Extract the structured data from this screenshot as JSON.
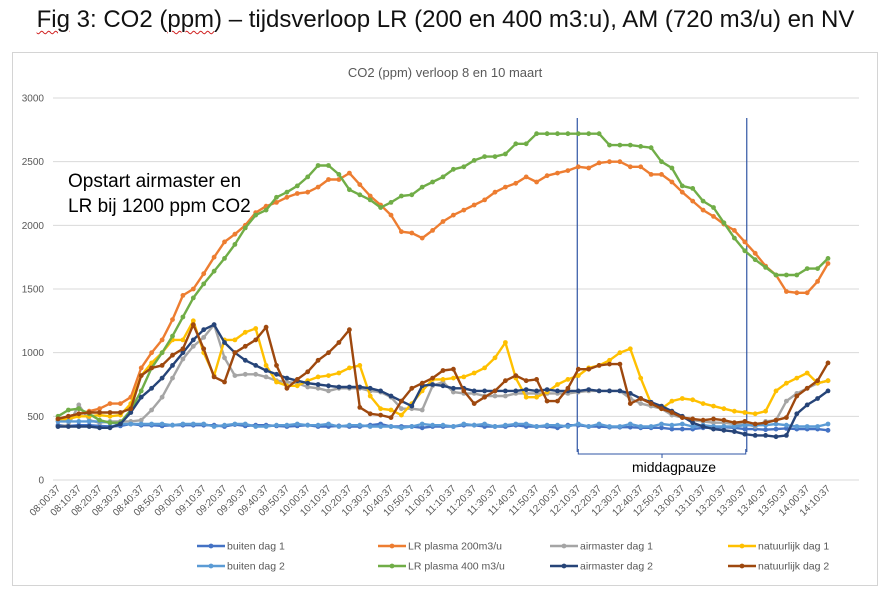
{
  "figure_title": {
    "prefix": "Fig",
    "text_1": " 3: CO2 (",
    "ppm": "ppm",
    "text_2": ") – tijdsverloop LR (200 en 400 m3:u), AM (720 m3/u) en NV"
  },
  "annotation": {
    "line1": "Opstart airmaster en",
    "line2": "LR bij 1200 ppm CO2"
  },
  "pause_label": "middagpauze",
  "chart_data": {
    "type": "line",
    "title": "CO2 (ppm) verloop 8 en 10 maart",
    "xlabel": "",
    "ylabel": "",
    "ylim": [
      0,
      3000
    ],
    "yticks": [
      0,
      500,
      1000,
      1500,
      2000,
      2500,
      3000
    ],
    "grid": true,
    "legend_position": "bottom",
    "x_tick_labels": [
      "08:00:37",
      "08:10:37",
      "08:20:37",
      "08:30:37",
      "08:40:37",
      "08:50:37",
      "09:00:37",
      "09:10:37",
      "09:20:37",
      "09:30:37",
      "09:40:37",
      "09:50:37",
      "10:00:37",
      "10:10:37",
      "10:20:37",
      "10:30:37",
      "10:40:37",
      "10:50:37",
      "11:00:37",
      "11:10:37",
      "11:20:37",
      "11:30:37",
      "11:40:37",
      "11:50:37",
      "12:00:37",
      "12:10:37",
      "12:20:37",
      "12:30:37",
      "12:40:37",
      "12:50:37",
      "13:00:37",
      "13:10:37",
      "13:20:37",
      "13:30:37",
      "13:40:37",
      "13:50:37",
      "14:00:37",
      "14:10:37"
    ],
    "points_per_tick": 2,
    "pause_range": [
      "12:10:37",
      "13:30:37"
    ],
    "series": [
      {
        "name": "buiten dag 1",
        "color": "#4472c4",
        "legend_row": 0,
        "legend_col": 0,
        "values": [
          430,
          425,
          430,
          430,
          425,
          420,
          425,
          440,
          430,
          430,
          425,
          430,
          430,
          430,
          430,
          430,
          420,
          435,
          425,
          430,
          430,
          425,
          420,
          425,
          430,
          420,
          420,
          425,
          420,
          420,
          430,
          440,
          420,
          420,
          420,
          410,
          420,
          420,
          420,
          430,
          430,
          420,
          420,
          420,
          430,
          420,
          420,
          420,
          410,
          430,
          430,
          420,
          420,
          415,
          415,
          415,
          410,
          410,
          410,
          400,
          400,
          400,
          410,
          410,
          415,
          410,
          400,
          400,
          395,
          400,
          405,
          400,
          400,
          400,
          390
        ]
      },
      {
        "name": "LR plasma 200m3/u",
        "color": "#ed7d31",
        "legend_row": 0,
        "legend_col": 1,
        "values": [
          480,
          500,
          520,
          540,
          560,
          600,
          600,
          650,
          880,
          1000,
          1100,
          1260,
          1450,
          1500,
          1620,
          1750,
          1870,
          1930,
          2000,
          2100,
          2150,
          2180,
          2220,
          2250,
          2260,
          2300,
          2360,
          2360,
          2410,
          2320,
          2230,
          2160,
          2080,
          1950,
          1940,
          1900,
          1960,
          2030,
          2080,
          2120,
          2160,
          2200,
          2260,
          2300,
          2330,
          2380,
          2340,
          2390,
          2410,
          2430,
          2460,
          2450,
          2490,
          2500,
          2500,
          2460,
          2460,
          2400,
          2400,
          2340,
          2260,
          2190,
          2120,
          2070,
          2010,
          1960,
          1870,
          1780,
          1680,
          1610,
          1480,
          1470,
          1470,
          1560,
          1700
        ]
      },
      {
        "name": "airmaster dag 1",
        "color": "#a5a5a5",
        "legend_row": 0,
        "legend_col": 2,
        "values": [
          420,
          430,
          590,
          470,
          450,
          460,
          460,
          460,
          470,
          550,
          650,
          800,
          950,
          1050,
          1120,
          1220,
          960,
          820,
          830,
          830,
          810,
          780,
          770,
          760,
          730,
          720,
          700,
          720,
          720,
          720,
          700,
          690,
          650,
          560,
          560,
          550,
          740,
          770,
          690,
          680,
          680,
          660,
          660,
          660,
          680,
          680,
          680,
          680,
          680,
          680,
          690,
          700,
          700,
          700,
          700,
          640,
          600,
          580,
          560,
          510,
          490,
          470,
          460,
          450,
          450,
          440,
          440,
          420,
          460,
          470,
          620,
          680,
          720,
          760,
          780
        ]
      },
      {
        "name": "natuurlijk dag 1",
        "color": "#ffc000",
        "legend_row": 0,
        "legend_col": 3,
        "values": [
          470,
          480,
          500,
          500,
          510,
          500,
          510,
          600,
          820,
          920,
          1000,
          1100,
          1100,
          1250,
          1000,
          820,
          1100,
          1100,
          1160,
          1190,
          900,
          770,
          740,
          740,
          780,
          810,
          820,
          840,
          880,
          900,
          660,
          560,
          550,
          510,
          600,
          700,
          790,
          790,
          800,
          810,
          840,
          880,
          960,
          1080,
          800,
          650,
          650,
          690,
          750,
          790,
          820,
          880,
          900,
          940,
          1000,
          1030,
          800,
          600,
          560,
          620,
          640,
          630,
          600,
          580,
          560,
          540,
          530,
          520,
          540,
          700,
          760,
          800,
          840,
          760,
          780
        ]
      },
      {
        "name": "buiten dag 2",
        "color": "#5b9bd5",
        "legend_row": 1,
        "legend_col": 0,
        "values": [
          460,
          460,
          460,
          460,
          460,
          450,
          440,
          440,
          440,
          440,
          440,
          430,
          440,
          440,
          440,
          420,
          430,
          440,
          440,
          420,
          420,
          430,
          430,
          440,
          430,
          430,
          440,
          420,
          430,
          430,
          420,
          420,
          420,
          410,
          420,
          440,
          430,
          430,
          420,
          440,
          430,
          440,
          420,
          430,
          440,
          440,
          420,
          430,
          430,
          420,
          440,
          420,
          440,
          420,
          420,
          440,
          420,
          420,
          440,
          430,
          440,
          420,
          430,
          420,
          420,
          420,
          430,
          430,
          430,
          440,
          430,
          420,
          420,
          420,
          440
        ]
      },
      {
        "name": "LR plasma 400 m3/u",
        "color": "#70ad47",
        "legend_row": 1,
        "legend_col": 1,
        "values": [
          500,
          550,
          560,
          520,
          470,
          450,
          450,
          550,
          700,
          880,
          1000,
          1130,
          1280,
          1430,
          1540,
          1640,
          1740,
          1850,
          1980,
          2080,
          2120,
          2220,
          2260,
          2310,
          2380,
          2470,
          2470,
          2400,
          2280,
          2240,
          2200,
          2140,
          2180,
          2230,
          2240,
          2300,
          2340,
          2380,
          2440,
          2460,
          2510,
          2540,
          2540,
          2560,
          2640,
          2640,
          2720,
          2720,
          2720,
          2720,
          2720,
          2720,
          2720,
          2630,
          2630,
          2630,
          2620,
          2610,
          2500,
          2450,
          2310,
          2290,
          2190,
          2140,
          2020,
          1900,
          1800,
          1730,
          1670,
          1610,
          1610,
          1610,
          1660,
          1660,
          1740
        ]
      },
      {
        "name": "airmaster dag 2",
        "color": "#264478",
        "legend_row": 1,
        "legend_col": 2,
        "values": [
          420,
          420,
          420,
          420,
          410,
          410,
          440,
          530,
          650,
          720,
          800,
          900,
          1000,
          1100,
          1180,
          1220,
          1080,
          1000,
          940,
          900,
          860,
          830,
          800,
          780,
          760,
          750,
          740,
          730,
          730,
          730,
          720,
          700,
          660,
          620,
          580,
          740,
          750,
          740,
          720,
          720,
          700,
          700,
          700,
          700,
          700,
          710,
          700,
          710,
          700,
          700,
          700,
          710,
          700,
          700,
          700,
          680,
          640,
          610,
          580,
          540,
          500,
          450,
          420,
          400,
          390,
          380,
          360,
          350,
          350,
          340,
          350,
          520,
          590,
          640,
          700
        ]
      },
      {
        "name": "natuurlijk dag 2",
        "color": "#9e480e",
        "legend_row": 1,
        "legend_col": 3,
        "values": [
          480,
          500,
          520,
          530,
          530,
          530,
          530,
          560,
          820,
          880,
          900,
          980,
          1030,
          1220,
          1030,
          810,
          770,
          1000,
          1050,
          1100,
          1200,
          900,
          720,
          790,
          850,
          940,
          1000,
          1080,
          1180,
          570,
          520,
          510,
          490,
          620,
          720,
          760,
          800,
          860,
          870,
          700,
          600,
          650,
          700,
          780,
          820,
          780,
          790,
          620,
          620,
          720,
          870,
          870,
          900,
          910,
          910,
          600,
          640,
          600,
          560,
          530,
          490,
          480,
          470,
          480,
          470,
          450,
          460,
          440,
          450,
          470,
          490,
          660,
          720,
          780,
          920
        ]
      }
    ]
  }
}
